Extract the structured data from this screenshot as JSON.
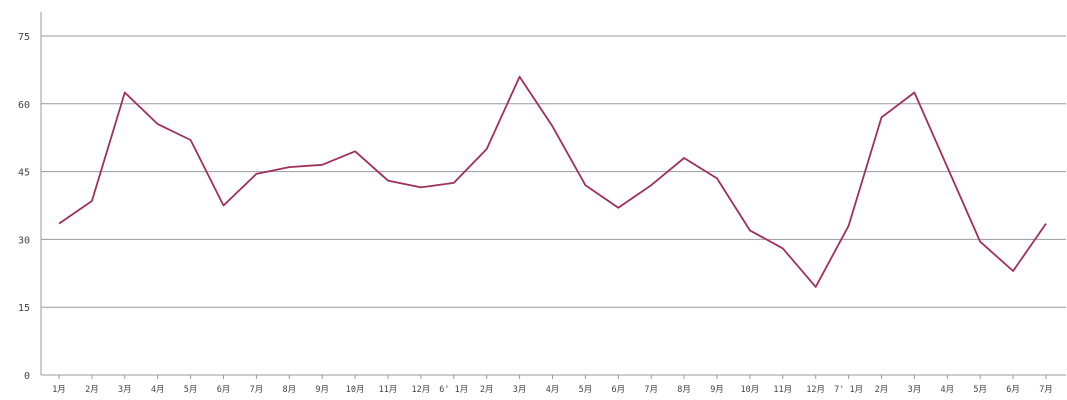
{
  "chart_data": {
    "type": "line",
    "title": "",
    "xlabel": "",
    "ylabel": "",
    "ylim": [
      0,
      75
    ],
    "yticks": [
      0,
      15,
      30,
      45,
      60,
      75
    ],
    "grid": true,
    "categories": [
      "1月",
      "2月",
      "3月",
      "4月",
      "5月",
      "6月",
      "7月",
      "8月",
      "9月",
      "10月",
      "11月",
      "12月",
      "6' 1月",
      "2月",
      "3月",
      "4月",
      "5月",
      "6月",
      "7月",
      "8月",
      "9月",
      "10月",
      "11月",
      "12月",
      "7' 1月",
      "2月",
      "3月",
      "4月",
      "5月",
      "6月",
      "7月"
    ],
    "series": [
      {
        "color": "#a0305a",
        "values": [
          33.5,
          38.5,
          62.5,
          55.5,
          52,
          37.5,
          44.5,
          46,
          46.5,
          49.5,
          43,
          41.5,
          42.5,
          50,
          66,
          55,
          42,
          37,
          42,
          48,
          43.5,
          32,
          28,
          19.5,
          33,
          57,
          62.5,
          46,
          29.5,
          23,
          33.5
        ]
      }
    ],
    "colors": {
      "line": "#a0305a",
      "grid": "#9a9a9a",
      "axis": "#9a9a9a",
      "text": "#444444"
    }
  }
}
